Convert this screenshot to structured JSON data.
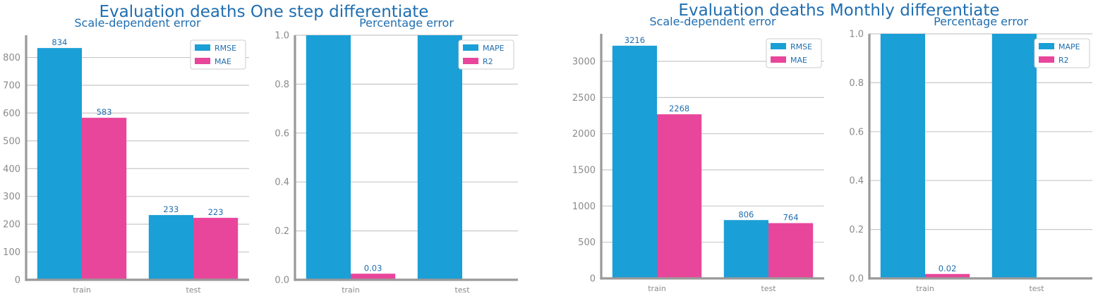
{
  "figures": [
    {
      "title": "Evaluation deaths One step differentiate"
    },
    {
      "title": "Evaluation deaths Monthly differentiate"
    }
  ],
  "colors": {
    "series1": "#1a9fd6",
    "series2": "#e8469b",
    "axis": "#999999",
    "grid": "#c8c8c8",
    "text": "#1f6eb0"
  },
  "chart_data": [
    {
      "type": "bar",
      "title": "Scale-dependent error",
      "categories": [
        "train",
        "test"
      ],
      "series": [
        {
          "name": "RMSE",
          "values": [
            834,
            233
          ],
          "labels": [
            "834",
            "233"
          ]
        },
        {
          "name": "MAE",
          "values": [
            583,
            223
          ],
          "labels": [
            "583",
            "223"
          ]
        }
      ],
      "ylim": [
        0,
        880
      ],
      "yticks": [
        0,
        100,
        200,
        300,
        400,
        500,
        600,
        700,
        800
      ],
      "ytick_decimals": 0,
      "grid": true,
      "legend": "top-right"
    },
    {
      "type": "bar",
      "title": "Percentage error",
      "categories": [
        "train",
        "test"
      ],
      "series": [
        {
          "name": "MAPE",
          "values": [
            1.0,
            1.0
          ],
          "labels": [
            "",
            ""
          ]
        },
        {
          "name": "R2",
          "values": [
            0.025,
            0.0
          ],
          "labels": [
            "0.03",
            ""
          ]
        }
      ],
      "ylim": [
        0,
        1.0
      ],
      "yticks": [
        0.0,
        0.2,
        0.4,
        0.6,
        0.8,
        1.0
      ],
      "ytick_decimals": 1,
      "grid": true,
      "legend": "top-right"
    },
    {
      "type": "bar",
      "title": "Scale-dependent error",
      "categories": [
        "train",
        "test"
      ],
      "series": [
        {
          "name": "RMSE",
          "values": [
            3216,
            806
          ],
          "labels": [
            "3216",
            "806"
          ]
        },
        {
          "name": "MAE",
          "values": [
            2268,
            764
          ],
          "labels": [
            "2268",
            "764"
          ]
        }
      ],
      "ylim": [
        0,
        3380
      ],
      "yticks": [
        0,
        500,
        1000,
        1500,
        2000,
        2500,
        3000
      ],
      "ytick_decimals": 0,
      "grid": true,
      "legend": "top-right"
    },
    {
      "type": "bar",
      "title": "Percentage error",
      "categories": [
        "train",
        "test"
      ],
      "series": [
        {
          "name": "MAPE",
          "values": [
            1.0,
            1.0
          ],
          "labels": [
            "",
            ""
          ]
        },
        {
          "name": "R2",
          "values": [
            0.018,
            0.0
          ],
          "labels": [
            "0.02",
            ""
          ]
        }
      ],
      "ylim": [
        0,
        1.0
      ],
      "yticks": [
        0.0,
        0.2,
        0.4,
        0.6,
        0.8,
        1.0
      ],
      "ytick_decimals": 1,
      "grid": true,
      "legend": "top-right"
    }
  ]
}
